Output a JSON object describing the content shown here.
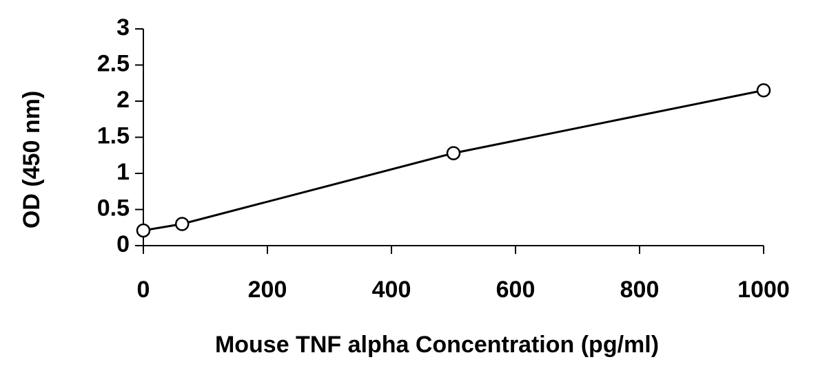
{
  "chart_data": {
    "type": "scatter",
    "x_label": "Mouse TNF alpha Concentration (pg/ml)",
    "y_label": "OD (450 nm)",
    "x": [
      0,
      62.5,
      500,
      1000
    ],
    "series": [
      {
        "color": "#000000",
        "values": [
          0.21,
          0.3,
          1.28,
          2.15
        ]
      }
    ],
    "xlim": [
      0,
      1000
    ],
    "xticks": [
      0,
      200,
      400,
      600,
      800,
      1000
    ],
    "ylim": [
      0,
      3
    ],
    "yticks": [
      0,
      0.5,
      1,
      1.5,
      2,
      2.5,
      3
    ],
    "line": true,
    "grid": false
  }
}
